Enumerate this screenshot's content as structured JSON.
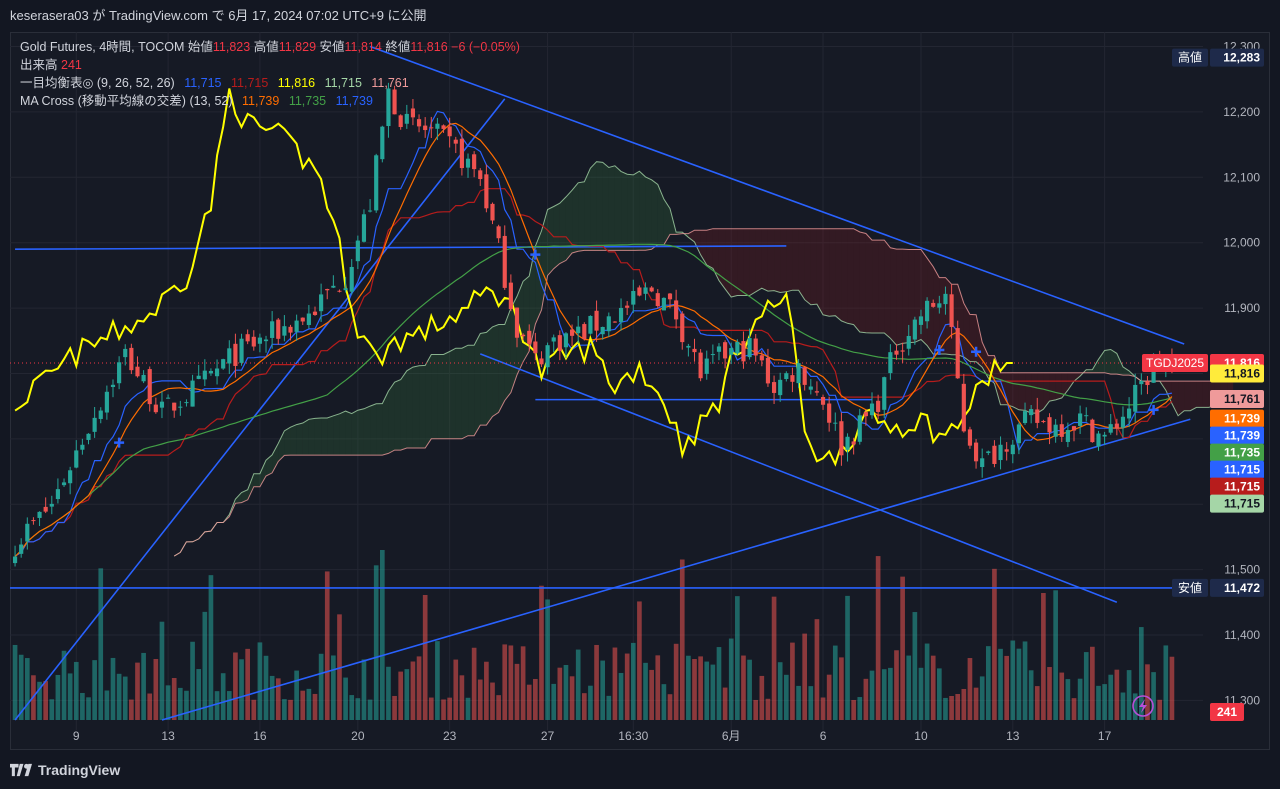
{
  "header": {
    "publisher_line": "keserasera03 が TradingView.com で 6月 17, 2024 07:02 UTC+9 に公開"
  },
  "legend": {
    "symbol_line": {
      "name": "Gold Futures, 4時間, TOCOM",
      "open_label": "始値",
      "open": "11,823",
      "high_label": "高値",
      "high": "11,829",
      "low_label": "安値",
      "low": "11,814",
      "close_label": "終値",
      "close": "11,816",
      "change": "−6 (−0.05%)"
    },
    "volume_line": {
      "label": "出来高",
      "value": "241"
    },
    "ichimoku_line": {
      "label": "一目均衡表◎ (9, 26, 52, 26)",
      "values": [
        "11,715",
        "11,715",
        "11,816",
        "11,715",
        "11,761"
      ],
      "colors": [
        "#2962ff",
        "#b71c1c",
        "#ffff00",
        "#a5d6a7",
        "#ef9a9a"
      ]
    },
    "ma_cross_line": {
      "label": "MA Cross (移動平均線の交差) (13, 52)",
      "values": [
        "11,739",
        "11,735",
        "11,739"
      ],
      "colors": [
        "#ff6d00",
        "#43a047",
        "#2962ff"
      ]
    }
  },
  "price_axis": {
    "ticks": [
      12300,
      12200,
      12100,
      12000,
      11900,
      11800,
      11700,
      11600,
      11500,
      11400,
      11300
    ],
    "tick_labels": [
      "12,300",
      "12,200",
      "12,100",
      "12,000",
      "11,900",
      "11,800",
      "11,700",
      "11,600",
      "11,500",
      "11,400",
      "11,300"
    ]
  },
  "time_axis": {
    "labels": [
      "9",
      "13",
      "16",
      "20",
      "23",
      "27",
      "16:30",
      "6月",
      "6",
      "10",
      "13",
      "17"
    ]
  },
  "price_tags": [
    {
      "label": "高値",
      "value": "12,283",
      "bg": "#1e2a4a",
      "fg": "#ffffff",
      "price": 12283
    },
    {
      "label": "TGDJ2025",
      "value": "11,816",
      "bg": "#f23645",
      "fg": "#ffffff",
      "price": 11816
    },
    {
      "label": "",
      "value": "11,816",
      "bg": "#ffeb3b",
      "fg": "#131722",
      "price": 11800
    },
    {
      "label": "",
      "value": "11,761",
      "bg": "#ef9a9a",
      "fg": "#131722",
      "price": 11761
    },
    {
      "label": "",
      "value": "11,739",
      "bg": "#ff6d00",
      "fg": "#ffffff",
      "price": 11731
    },
    {
      "label": "",
      "value": "11,739",
      "bg": "#2962ff",
      "fg": "#ffffff",
      "price": 11705
    },
    {
      "label": "",
      "value": "11,735",
      "bg": "#43a047",
      "fg": "#ffffff",
      "price": 11679
    },
    {
      "label": "",
      "value": "11,715",
      "bg": "#2962ff",
      "fg": "#ffffff",
      "price": 11653
    },
    {
      "label": "",
      "value": "11,715",
      "bg": "#b71c1c",
      "fg": "#ffffff",
      "price": 11627
    },
    {
      "label": "",
      "value": "11,715",
      "bg": "#a5d6a7",
      "fg": "#131722",
      "price": 11601
    },
    {
      "label": "安値",
      "value": "11,472",
      "bg": "#1e2a4a",
      "fg": "#ffffff",
      "price": 11472
    }
  ],
  "volume_tag": {
    "value": "241",
    "bg": "#f23645",
    "fg": "#ffffff"
  },
  "footer": {
    "brand": "TradingView"
  },
  "colors": {
    "up": "#26a69a",
    "down": "#ef5350",
    "trendline": "#2962ff",
    "tenkan": "#2962ff",
    "kijun": "#b71c1c",
    "chikou": "#ffff00",
    "spanA": "#a5d6a7",
    "spanB": "#ef9a9a",
    "ma_fast": "#ff6d00",
    "ma_slow": "#43a047"
  },
  "chart_data": {
    "type": "candlestick",
    "instrument": "Gold Futures, 4時間, TOCOM",
    "ylim": [
      11270,
      12310
    ],
    "bars": 190,
    "close_path_anchors": [
      [
        0,
        11540
      ],
      [
        6,
        11600
      ],
      [
        12,
        11720
      ],
      [
        18,
        11830
      ],
      [
        24,
        11740
      ],
      [
        30,
        11780
      ],
      [
        36,
        11830
      ],
      [
        42,
        11860
      ],
      [
        48,
        11890
      ],
      [
        54,
        11950
      ],
      [
        58,
        12060
      ],
      [
        61,
        12230
      ],
      [
        64,
        12180
      ],
      [
        68,
        12170
      ],
      [
        72,
        12140
      ],
      [
        76,
        12100
      ],
      [
        79,
        11990
      ],
      [
        82,
        11870
      ],
      [
        85,
        11820
      ],
      [
        88,
        11850
      ],
      [
        92,
        11860
      ],
      [
        96,
        11880
      ],
      [
        100,
        11900
      ],
      [
        104,
        11930
      ],
      [
        108,
        11890
      ],
      [
        112,
        11800
      ],
      [
        116,
        11830
      ],
      [
        120,
        11840
      ],
      [
        124,
        11780
      ],
      [
        128,
        11810
      ],
      [
        132,
        11760
      ],
      [
        135,
        11690
      ],
      [
        138,
        11720
      ],
      [
        141,
        11760
      ],
      [
        144,
        11840
      ],
      [
        148,
        11890
      ],
      [
        152,
        11920
      ],
      [
        155,
        11720
      ],
      [
        158,
        11660
      ],
      [
        162,
        11700
      ],
      [
        166,
        11730
      ],
      [
        170,
        11720
      ],
      [
        174,
        11730
      ],
      [
        178,
        11700
      ],
      [
        182,
        11750
      ],
      [
        186,
        11810
      ],
      [
        189,
        11816
      ]
    ],
    "extremes": {
      "high": 12283,
      "low": 11472,
      "last": 11816
    },
    "overlays": {
      "trendlines": [
        {
          "from": [
            0,
            11270
          ],
          "to": [
            80,
            12220
          ]
        },
        {
          "from": [
            58,
            12300
          ],
          "to": [
            191,
            11845
          ]
        },
        {
          "from": [
            0,
            11990
          ],
          "to": [
            126,
            11995
          ]
        },
        {
          "from": [
            76,
            11830
          ],
          "to": [
            180,
            11450
          ]
        },
        {
          "from": [
            24,
            11270
          ],
          "to": [
            192,
            11730
          ]
        },
        {
          "from": [
            85,
            11760
          ],
          "to": [
            140,
            11760
          ]
        }
      ],
      "horizontal_low": 11472
    },
    "last_price": 11816
  }
}
